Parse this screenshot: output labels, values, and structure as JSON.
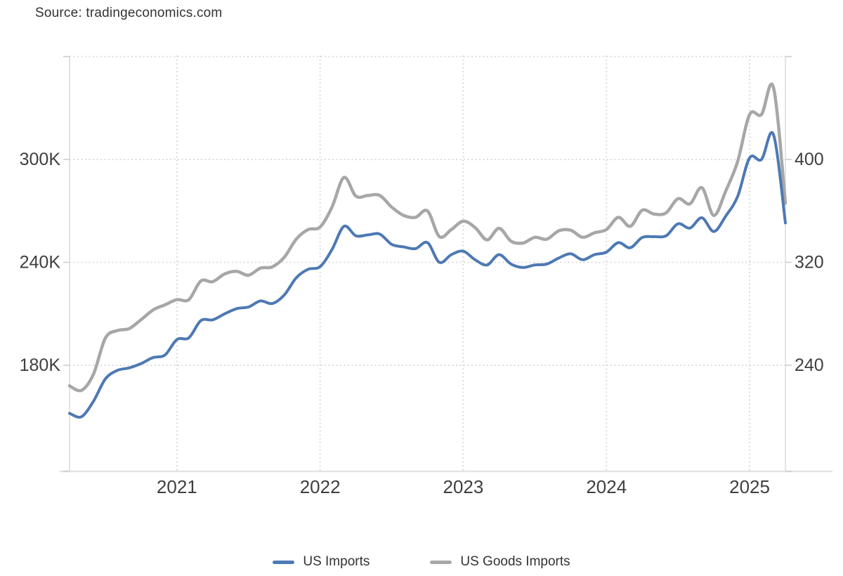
{
  "page": {
    "source_label": "Source: tradingeconomics.com"
  },
  "colors": {
    "us_imports_line": "#4d79b4",
    "us_goods_imports_line": "#a7a7a7",
    "grid_dotted": "#d8d8d8",
    "axis_line": "#e4e4e4",
    "tick_mark": "#cbcbcb",
    "axis_text": "#3f3f3f",
    "background": "#ffffff"
  },
  "chart_data": {
    "type": "line",
    "title": "",
    "frequency": "monthly",
    "x_start": "2020-04",
    "x_end": "2025-04",
    "x_tick_labels": [
      "2021",
      "2022",
      "2023",
      "2024",
      "2025"
    ],
    "left_axis": {
      "tick_labels": [
        "300K",
        "240K",
        "180K"
      ],
      "tick_values": [
        300,
        240,
        180
      ]
    },
    "right_axis": {
      "tick_labels": [
        "400",
        "320",
        "240"
      ],
      "tick_values": [
        400,
        320,
        240
      ]
    },
    "grid": "dotted",
    "legend_position": "bottom",
    "series": [
      {
        "name": "US Imports",
        "axis": "left",
        "color": "#4d79b4",
        "values": [
          152,
          150,
          159,
          172,
          177,
          178.5,
          181,
          184.5,
          186,
          195,
          196,
          206,
          206.5,
          210,
          213,
          214,
          217.5,
          216,
          221,
          231,
          236,
          237.5,
          247.5,
          261,
          255.5,
          256,
          256.5,
          250.5,
          249,
          248,
          251.5,
          240,
          244.5,
          246.5,
          241.5,
          238.5,
          244.5,
          239,
          237,
          238.5,
          239,
          242.5,
          245,
          241.5,
          244.5,
          246,
          251.5,
          248.5,
          254.5,
          255,
          255.5,
          262.5,
          260,
          266,
          258,
          267,
          278.5,
          301,
          300,
          314.5,
          263
        ]
      },
      {
        "name": "US Goods Imports",
        "axis": "right",
        "color": "#a7a7a7",
        "values": [
          224,
          220.5,
          233,
          261,
          267,
          268.5,
          275.5,
          283,
          287,
          291,
          291,
          305.5,
          305,
          311,
          313,
          310,
          315.5,
          316.5,
          324,
          338,
          345.5,
          347.5,
          363,
          386,
          371.5,
          372,
          372,
          363,
          356.5,
          355,
          360,
          340,
          345.5,
          352,
          347,
          337.5,
          346.5,
          336.5,
          335,
          339.5,
          338,
          344.5,
          345,
          339.5,
          343,
          345.5,
          355,
          348,
          360.5,
          357.5,
          358.5,
          369.5,
          365.5,
          378,
          356.5,
          375.5,
          398.5,
          435,
          435,
          456,
          366
        ]
      }
    ]
  }
}
